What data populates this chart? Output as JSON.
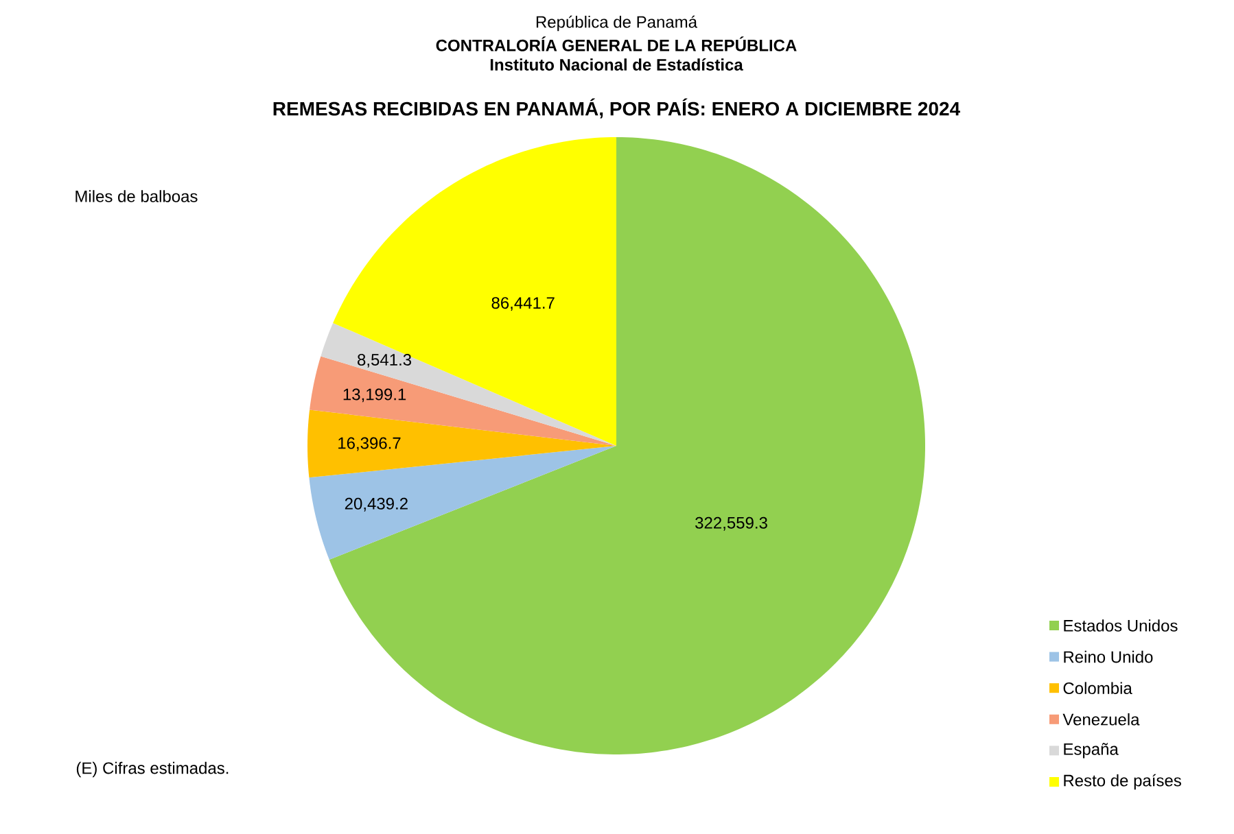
{
  "chart_data": {
    "type": "pie",
    "title": "REMESAS RECIBIDAS EN PANAMÁ, POR PAÍS: ENERO A DICIEMBRE 2024",
    "categories": [
      "Estados Unidos",
      "Reino Unido",
      "Colombia",
      "Venezuela",
      "España",
      "Resto de países"
    ],
    "values": [
      322559.3,
      20439.2,
      16396.7,
      13199.1,
      8541.3,
      86441.7
    ],
    "value_labels": [
      "322,559.3",
      "20,439.2",
      "16,396.7",
      "13,199.1",
      "8,541.3",
      "86,441.7"
    ],
    "colors": [
      "#92d050",
      "#9dc3e6",
      "#ffc000",
      "#f79b77",
      "#d9d9d9",
      "#ffff00"
    ],
    "legend": "bottom right",
    "annotations": [
      "República de Panamá",
      "CONTRALORÍA GENERAL DE LA REPÚBLICA",
      "Instituto Nacional de Estadística",
      "Miles de balboas",
      "(E) Cifras estimadas."
    ]
  }
}
